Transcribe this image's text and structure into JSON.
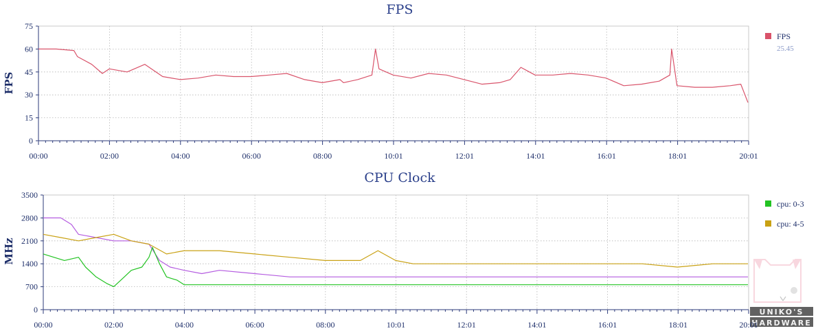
{
  "chart_data": [
    {
      "type": "line",
      "title": "FPS",
      "xlabel": "",
      "ylabel": "FPS",
      "ylim": [
        0,
        75
      ],
      "yticks": [
        "0",
        "15",
        "30",
        "45",
        "60",
        "75"
      ],
      "xticks": [
        "00:00",
        "02:00",
        "04:00",
        "06:00",
        "08:00",
        "10:01",
        "12:01",
        "14:01",
        "16:01",
        "18:01",
        "20:01"
      ],
      "grid": true,
      "legend_position": "right",
      "series": [
        {
          "name": "FPS",
          "legend_value": "25.45",
          "color": "#d9536a",
          "x_minutes": [
            0,
            0.5,
            1,
            1.1,
            1.5,
            1.8,
            2,
            2.5,
            3,
            3.5,
            4,
            4.5,
            5,
            5.5,
            6,
            6.5,
            7,
            7.5,
            8,
            8.5,
            8.6,
            9,
            9.4,
            9.5,
            9.6,
            10,
            10.5,
            11,
            11.5,
            12,
            12.5,
            13,
            13.3,
            13.6,
            14,
            14.5,
            15,
            15.5,
            16,
            16.5,
            17,
            17.5,
            17.8,
            17.85,
            18,
            18.5,
            19,
            19.5,
            19.8,
            20
          ],
          "values": [
            60,
            60,
            59,
            55,
            50,
            44,
            47,
            45,
            50,
            42,
            40,
            41,
            43,
            42,
            42,
            43,
            44,
            40,
            38,
            40,
            38,
            40,
            43,
            60,
            47,
            43,
            41,
            44,
            43,
            40,
            37,
            38,
            40,
            48,
            43,
            43,
            44,
            43,
            41,
            36,
            37,
            39,
            43,
            60,
            36,
            35,
            35,
            36,
            37,
            25
          ]
        }
      ]
    },
    {
      "type": "line",
      "title": "CPU Clock",
      "xlabel": "",
      "ylabel": "MHz",
      "ylim": [
        0,
        3500
      ],
      "yticks": [
        "0",
        "700",
        "1400",
        "2100",
        "2800",
        "3500"
      ],
      "xticks": [
        "00:00",
        "02:00",
        "04:00",
        "06:00",
        "08:00",
        "10:01",
        "12:01",
        "14:01",
        "16:01",
        "18:01",
        "20:01"
      ],
      "grid": true,
      "legend_position": "right",
      "series": [
        {
          "name": "cpu: 0-3",
          "color": "#22c322",
          "x_minutes": [
            0,
            0.3,
            0.6,
            1,
            1.2,
            1.5,
            1.8,
            2,
            2.2,
            2.5,
            2.8,
            3,
            3.1,
            3.3,
            3.5,
            3.8,
            4,
            5,
            6,
            8,
            10,
            12,
            14,
            16,
            18,
            20
          ],
          "values": [
            1700,
            1600,
            1500,
            1600,
            1300,
            1000,
            800,
            700,
            900,
            1200,
            1300,
            1600,
            1900,
            1400,
            1000,
            900,
            760,
            760,
            760,
            760,
            760,
            760,
            760,
            760,
            760,
            760
          ]
        },
        {
          "name": "cpu: 4-5",
          "color": "#c9a113",
          "x_minutes": [
            0,
            0.5,
            1,
            1.5,
            2,
            2.5,
            3,
            3.5,
            4,
            5,
            6,
            7,
            8,
            9,
            9.5,
            10,
            10.5,
            11,
            12,
            13,
            14,
            15,
            16,
            17,
            18,
            19,
            20
          ],
          "values": [
            2300,
            2200,
            2100,
            2200,
            2300,
            2100,
            2000,
            1700,
            1800,
            1800,
            1700,
            1600,
            1500,
            1500,
            1800,
            1500,
            1400,
            1400,
            1400,
            1400,
            1400,
            1400,
            1400,
            1400,
            1300,
            1400,
            1400
          ]
        },
        {
          "name": "",
          "color": "#b45be0",
          "x_minutes": [
            0,
            0.5,
            0.8,
            1,
            1.5,
            2,
            2.5,
            3,
            3.3,
            3.6,
            4,
            4.5,
            5,
            6,
            7,
            8,
            9,
            10,
            11,
            12,
            14,
            16,
            18,
            20
          ],
          "values": [
            2800,
            2800,
            2600,
            2300,
            2200,
            2100,
            2100,
            2000,
            1500,
            1300,
            1200,
            1100,
            1200,
            1100,
            1000,
            1000,
            1000,
            1000,
            1000,
            1000,
            1000,
            1000,
            1000,
            1000
          ]
        }
      ]
    }
  ],
  "watermark": {
    "lines": [
      "UNIKO'S",
      "HARDWARE"
    ]
  }
}
